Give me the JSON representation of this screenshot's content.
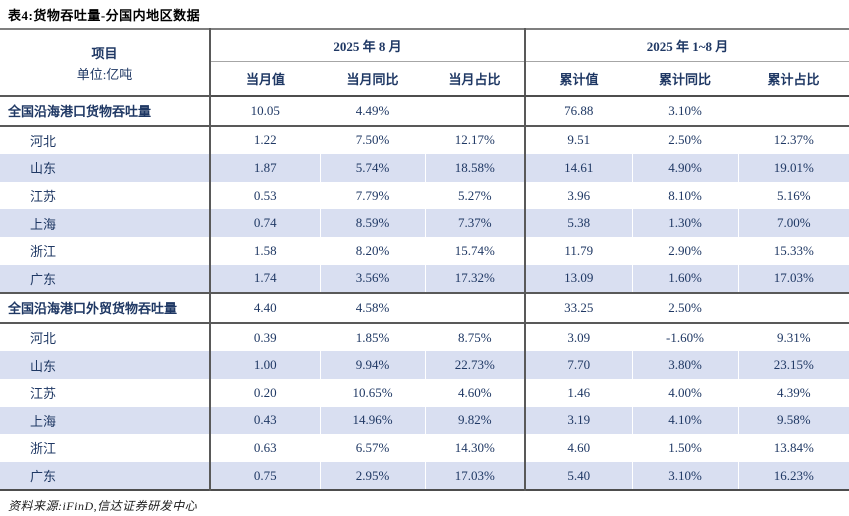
{
  "title": "表4:货物吞吐量-分国内地区数据",
  "table": {
    "header": {
      "item_label": "项目",
      "unit_label": "单位:亿吨",
      "group_month": "2025 年 8 月",
      "group_ytd": "2025 年 1~8 月",
      "columns": [
        "当月值",
        "当月同比",
        "当月占比",
        "累计值",
        "累计同比",
        "累计占比"
      ]
    },
    "rows": [
      {
        "label": "全国沿海港口货物吞吐量",
        "type": "section",
        "striped": false,
        "cells": [
          "10.05",
          "4.49%",
          "",
          "76.88",
          "3.10%",
          ""
        ]
      },
      {
        "label": "河北",
        "type": "region",
        "striped": false,
        "cells": [
          "1.22",
          "7.50%",
          "12.17%",
          "9.51",
          "2.50%",
          "12.37%"
        ]
      },
      {
        "label": "山东",
        "type": "region",
        "striped": true,
        "cells": [
          "1.87",
          "5.74%",
          "18.58%",
          "14.61",
          "4.90%",
          "19.01%"
        ]
      },
      {
        "label": "江苏",
        "type": "region",
        "striped": false,
        "cells": [
          "0.53",
          "7.79%",
          "5.27%",
          "3.96",
          "8.10%",
          "5.16%"
        ]
      },
      {
        "label": "上海",
        "type": "region",
        "striped": true,
        "cells": [
          "0.74",
          "8.59%",
          "7.37%",
          "5.38",
          "1.30%",
          "7.00%"
        ]
      },
      {
        "label": "浙江",
        "type": "region",
        "striped": false,
        "cells": [
          "1.58",
          "8.20%",
          "15.74%",
          "11.79",
          "2.90%",
          "15.33%"
        ]
      },
      {
        "label": "广东",
        "type": "region",
        "striped": true,
        "cells": [
          "1.74",
          "3.56%",
          "17.32%",
          "13.09",
          "1.60%",
          "17.03%"
        ]
      },
      {
        "label": "全国沿海港口外贸货物吞吐量",
        "type": "section",
        "striped": false,
        "cells": [
          "4.40",
          "4.58%",
          "",
          "33.25",
          "2.50%",
          ""
        ]
      },
      {
        "label": "河北",
        "type": "region",
        "striped": false,
        "cells": [
          "0.39",
          "1.85%",
          "8.75%",
          "3.09",
          "-1.60%",
          "9.31%"
        ]
      },
      {
        "label": "山东",
        "type": "region",
        "striped": true,
        "cells": [
          "1.00",
          "9.94%",
          "22.73%",
          "7.70",
          "3.80%",
          "23.15%"
        ]
      },
      {
        "label": "江苏",
        "type": "region",
        "striped": false,
        "cells": [
          "0.20",
          "10.65%",
          "4.60%",
          "1.46",
          "4.00%",
          "4.39%"
        ]
      },
      {
        "label": "上海",
        "type": "region",
        "striped": true,
        "cells": [
          "0.43",
          "14.96%",
          "9.82%",
          "3.19",
          "4.10%",
          "9.58%"
        ]
      },
      {
        "label": "浙江",
        "type": "region",
        "striped": false,
        "cells": [
          "0.63",
          "6.57%",
          "14.30%",
          "4.60",
          "1.50%",
          "13.84%"
        ]
      },
      {
        "label": "广东",
        "type": "region",
        "striped": true,
        "cells": [
          "0.75",
          "2.95%",
          "17.03%",
          "5.40",
          "3.10%",
          "16.23%"
        ]
      }
    ]
  },
  "footer": {
    "source": "资料来源:iFinD,信达证券研发中心"
  },
  "colors": {
    "text_navy": "#1F3864",
    "stripe": "#D9DFF1",
    "rule_dark": "#4d4d4d",
    "rule_mid": "#595959",
    "rule_light": "#a6a6a6",
    "title_rule": "#7f7f7f"
  }
}
